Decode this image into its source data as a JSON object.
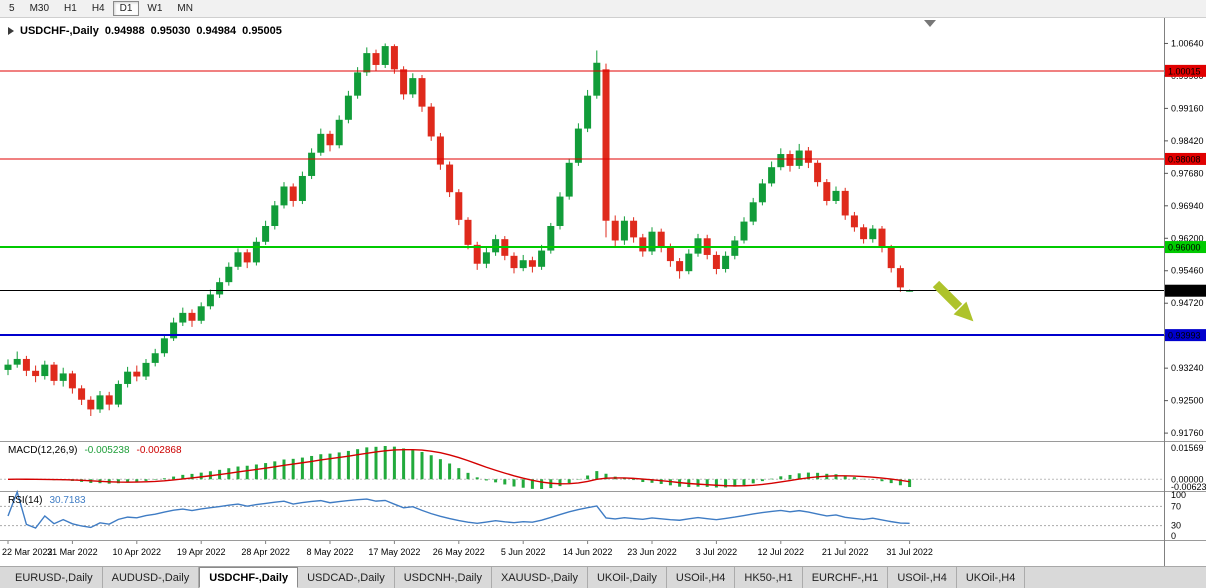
{
  "toolbar": {
    "timeframes": [
      {
        "label": "5",
        "active": false
      },
      {
        "label": "M30",
        "active": false
      },
      {
        "label": "H1",
        "active": false
      },
      {
        "label": "H4",
        "active": false
      },
      {
        "label": "D1",
        "active": true
      },
      {
        "label": "W1",
        "active": false
      },
      {
        "label": "MN",
        "active": false
      }
    ]
  },
  "chart": {
    "symbol_period": "USDCHF-,Daily",
    "open": "0.94988",
    "high": "0.95030",
    "low": "0.94984",
    "close": "0.95005"
  },
  "price_axis": {
    "ticks": [
      "1.00640",
      "0.99900",
      "0.99160",
      "0.98420",
      "0.97680",
      "0.96940",
      "0.96200",
      "0.95460",
      "0.94720",
      "0.93980",
      "0.93240",
      "0.92500",
      "0.91760"
    ]
  },
  "hlines": [
    {
      "value": 1.00015,
      "label": "1.00015",
      "color": "#e00000",
      "width": 1.2
    },
    {
      "value": 0.98008,
      "label": "0.98008",
      "color": "#e00000",
      "width": 1.2
    },
    {
      "value": 0.96,
      "label": "0.96000",
      "color": "#00ca00",
      "width": 2
    },
    {
      "value": 0.95005,
      "label": "0.95005",
      "color": "#000000",
      "width": 1
    },
    {
      "value": 0.93993,
      "label": "0.93993",
      "color": "#0000cd",
      "width": 2
    }
  ],
  "annotation_arrow": {
    "color": "#aec32b",
    "direction": "down-right"
  },
  "colors": {
    "bull": "#119c39",
    "bear": "#df2a1c",
    "macd_hist": "#22aa3c",
    "macd_signal": "#d40000",
    "rsi_line": "#3f7cc4"
  },
  "chart_data": {
    "type": "candlestick",
    "symbol": "USDCHF",
    "timeframe": "Daily",
    "ylim": [
      0.9158,
      1.0122
    ],
    "x_labels": [
      {
        "index": 0,
        "label": "22 Mar 2022"
      },
      {
        "index": 7,
        "label": "31 Mar 2022"
      },
      {
        "index": 14,
        "label": "10 Apr 2022"
      },
      {
        "index": 21,
        "label": "19 Apr 2022"
      },
      {
        "index": 28,
        "label": "28 Apr 2022"
      },
      {
        "index": 35,
        "label": "8 May 2022"
      },
      {
        "index": 42,
        "label": "17 May 2022"
      },
      {
        "index": 49,
        "label": "26 May 2022"
      },
      {
        "index": 56,
        "label": "5 Jun 2022"
      },
      {
        "index": 63,
        "label": "14 Jun 2022"
      },
      {
        "index": 70,
        "label": "23 Jun 2022"
      },
      {
        "index": 77,
        "label": "3 Jul 2022"
      },
      {
        "index": 84,
        "label": "12 Jul 2022"
      },
      {
        "index": 91,
        "label": "21 Jul 2022"
      },
      {
        "index": 98,
        "label": "31 Jul 2022"
      }
    ],
    "candles": [
      [
        0.932,
        0.9344,
        0.9308,
        0.9332
      ],
      [
        0.9332,
        0.9362,
        0.9325,
        0.9345
      ],
      [
        0.9345,
        0.9352,
        0.9306,
        0.9318
      ],
      [
        0.9318,
        0.933,
        0.9292,
        0.9306
      ],
      [
        0.9306,
        0.9341,
        0.9298,
        0.9332
      ],
      [
        0.9332,
        0.9338,
        0.9285,
        0.9295
      ],
      [
        0.9295,
        0.9325,
        0.9282,
        0.9312
      ],
      [
        0.9312,
        0.9318,
        0.9266,
        0.9278
      ],
      [
        0.9278,
        0.9285,
        0.924,
        0.9252
      ],
      [
        0.9252,
        0.926,
        0.9215,
        0.923
      ],
      [
        0.923,
        0.9272,
        0.9222,
        0.9262
      ],
      [
        0.9262,
        0.927,
        0.9228,
        0.9241
      ],
      [
        0.9241,
        0.9296,
        0.9235,
        0.9288
      ],
      [
        0.9288,
        0.9327,
        0.928,
        0.9316
      ],
      [
        0.9316,
        0.933,
        0.9294,
        0.9305
      ],
      [
        0.9305,
        0.9345,
        0.9297,
        0.9336
      ],
      [
        0.9336,
        0.9368,
        0.9328,
        0.9358
      ],
      [
        0.9358,
        0.94,
        0.935,
        0.9392
      ],
      [
        0.9392,
        0.9439,
        0.9386,
        0.9428
      ],
      [
        0.9428,
        0.9462,
        0.942,
        0.945
      ],
      [
        0.945,
        0.9458,
        0.9418,
        0.9432
      ],
      [
        0.9432,
        0.9474,
        0.9425,
        0.9465
      ],
      [
        0.9465,
        0.9503,
        0.9458,
        0.9492
      ],
      [
        0.9492,
        0.953,
        0.9484,
        0.952
      ],
      [
        0.952,
        0.9565,
        0.9512,
        0.9555
      ],
      [
        0.9555,
        0.9597,
        0.9548,
        0.9588
      ],
      [
        0.9588,
        0.9595,
        0.9552,
        0.9565
      ],
      [
        0.9565,
        0.9622,
        0.9558,
        0.9612
      ],
      [
        0.9612,
        0.966,
        0.9605,
        0.9648
      ],
      [
        0.9648,
        0.9705,
        0.964,
        0.9695
      ],
      [
        0.9695,
        0.9748,
        0.9688,
        0.9738
      ],
      [
        0.9738,
        0.9745,
        0.9692,
        0.9705
      ],
      [
        0.9705,
        0.9772,
        0.9698,
        0.9762
      ],
      [
        0.9762,
        0.9825,
        0.9755,
        0.9815
      ],
      [
        0.9815,
        0.987,
        0.9808,
        0.9858
      ],
      [
        0.9858,
        0.9865,
        0.9818,
        0.9832
      ],
      [
        0.9832,
        0.99,
        0.9825,
        0.989
      ],
      [
        0.989,
        0.9956,
        0.9882,
        0.9945
      ],
      [
        0.9945,
        1.001,
        0.9938,
        0.9998
      ],
      [
        0.9998,
        1.0055,
        0.999,
        1.0042
      ],
      [
        1.0042,
        1.005,
        1.0002,
        1.0015
      ],
      [
        1.0015,
        1.0064,
        1.0008,
        1.0058
      ],
      [
        1.0058,
        1.0062,
        0.9995,
        1.0005
      ],
      [
        1.0005,
        1.0012,
        0.9936,
        0.9948
      ],
      [
        0.9948,
        0.9996,
        0.994,
        0.9985
      ],
      [
        0.9985,
        0.9992,
        0.9908,
        0.992
      ],
      [
        0.992,
        0.9928,
        0.9842,
        0.9852
      ],
      [
        0.9852,
        0.986,
        0.9776,
        0.9788
      ],
      [
        0.9788,
        0.9795,
        0.9714,
        0.9725
      ],
      [
        0.9725,
        0.9732,
        0.965,
        0.9662
      ],
      [
        0.9662,
        0.9668,
        0.9595,
        0.9605
      ],
      [
        0.9605,
        0.9612,
        0.9548,
        0.9562
      ],
      [
        0.9562,
        0.9598,
        0.9552,
        0.9588
      ],
      [
        0.9588,
        0.9628,
        0.958,
        0.9618
      ],
      [
        0.9618,
        0.9625,
        0.957,
        0.958
      ],
      [
        0.958,
        0.9588,
        0.954,
        0.9552
      ],
      [
        0.9552,
        0.9582,
        0.9545,
        0.957
      ],
      [
        0.957,
        0.9578,
        0.9542,
        0.9555
      ],
      [
        0.9555,
        0.9605,
        0.9548,
        0.9592
      ],
      [
        0.9592,
        0.9655,
        0.9585,
        0.9648
      ],
      [
        0.9648,
        0.9725,
        0.964,
        0.9715
      ],
      [
        0.9715,
        0.9802,
        0.9708,
        0.9792
      ],
      [
        0.9792,
        0.9882,
        0.9785,
        0.987
      ],
      [
        0.987,
        0.9958,
        0.9862,
        0.9945
      ],
      [
        0.9945,
        1.0048,
        0.9938,
        1.002
      ],
      [
        1.0005,
        1.0018,
        0.9622,
        0.966
      ],
      [
        0.966,
        0.9672,
        0.9598,
        0.9615
      ],
      [
        0.9615,
        0.967,
        0.9605,
        0.966
      ],
      [
        0.966,
        0.9668,
        0.961,
        0.9622
      ],
      [
        0.9622,
        0.963,
        0.9578,
        0.959
      ],
      [
        0.959,
        0.9645,
        0.9582,
        0.9635
      ],
      [
        0.9635,
        0.9642,
        0.9588,
        0.96
      ],
      [
        0.96,
        0.9608,
        0.9555,
        0.9568
      ],
      [
        0.9568,
        0.9575,
        0.9528,
        0.9545
      ],
      [
        0.9545,
        0.9595,
        0.9538,
        0.9585
      ],
      [
        0.9585,
        0.963,
        0.9578,
        0.962
      ],
      [
        0.962,
        0.9628,
        0.9572,
        0.9582
      ],
      [
        0.9582,
        0.959,
        0.9538,
        0.955
      ],
      [
        0.955,
        0.959,
        0.9542,
        0.958
      ],
      [
        0.958,
        0.9625,
        0.9572,
        0.9615
      ],
      [
        0.9615,
        0.9668,
        0.9608,
        0.9658
      ],
      [
        0.9658,
        0.9712,
        0.965,
        0.9702
      ],
      [
        0.9702,
        0.9755,
        0.9695,
        0.9745
      ],
      [
        0.9745,
        0.9795,
        0.9738,
        0.9782
      ],
      [
        0.9782,
        0.9825,
        0.9775,
        0.9812
      ],
      [
        0.9812,
        0.982,
        0.9772,
        0.9785
      ],
      [
        0.9785,
        0.9835,
        0.9778,
        0.982
      ],
      [
        0.982,
        0.9828,
        0.978,
        0.9792
      ],
      [
        0.9792,
        0.9798,
        0.9738,
        0.9748
      ],
      [
        0.9748,
        0.9755,
        0.9695,
        0.9705
      ],
      [
        0.9705,
        0.9738,
        0.9698,
        0.9728
      ],
      [
        0.9728,
        0.9735,
        0.9662,
        0.9672
      ],
      [
        0.9672,
        0.968,
        0.9635,
        0.9645
      ],
      [
        0.9645,
        0.9652,
        0.9608,
        0.9618
      ],
      [
        0.9618,
        0.965,
        0.961,
        0.9642
      ],
      [
        0.9642,
        0.9648,
        0.9588,
        0.9598
      ],
      [
        0.9598,
        0.9605,
        0.9542,
        0.9552
      ],
      [
        0.9552,
        0.9558,
        0.9498,
        0.9508
      ],
      [
        0.94988,
        0.9503,
        0.94984,
        0.95005
      ]
    ],
    "indicators": {
      "macd": {
        "label": "MACD(12,26,9)",
        "value": "-0.005238",
        "signal_value": "-0.002868",
        "params": [
          12,
          26,
          9
        ],
        "axis_ticks": [
          "0.01569",
          "0.00000",
          "-0.00623"
        ]
      },
      "rsi": {
        "label": "RSI(14)",
        "value": "30.7183",
        "period": 14,
        "levels": [
          70,
          30
        ],
        "axis_ticks": [
          "100",
          "70",
          "30",
          "0"
        ]
      }
    }
  },
  "bottom_tabs": [
    {
      "label": "EURUSD-,Daily",
      "active": false
    },
    {
      "label": "AUDUSD-,Daily",
      "active": false
    },
    {
      "label": "USDCHF-,Daily",
      "active": true
    },
    {
      "label": "USDCAD-,Daily",
      "active": false
    },
    {
      "label": "USDCNH-,Daily",
      "active": false
    },
    {
      "label": "XAUUSD-,Daily",
      "active": false
    },
    {
      "label": "UKOil-,Daily",
      "active": false
    },
    {
      "label": "USOil-,H4",
      "active": false
    },
    {
      "label": "HK50-,H1",
      "active": false
    },
    {
      "label": "EURCHF-,H1",
      "active": false
    },
    {
      "label": "USOil-,H4",
      "active": false
    },
    {
      "label": "UKOil-,H4",
      "active": false
    }
  ]
}
